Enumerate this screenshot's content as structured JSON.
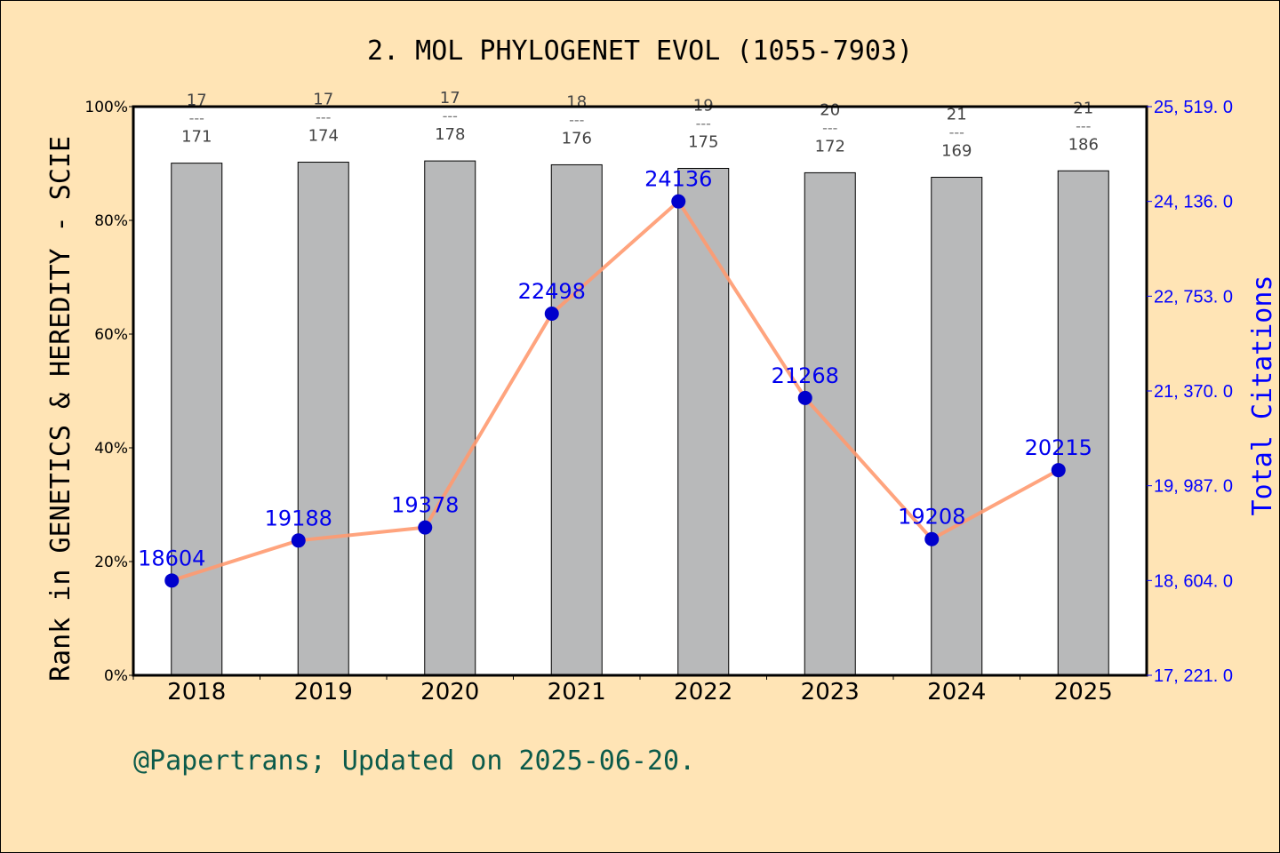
{
  "chart_data": {
    "type": "bar+line",
    "title": "2. MOL PHYLOGENET EVOL (1055-7903)",
    "ylabel": "Rank in GENETICS & HEREDITY - SCIE",
    "y2label": "Total Citations",
    "categories": [
      "2018",
      "2019",
      "2020",
      "2021",
      "2022",
      "2023",
      "2024",
      "2025"
    ],
    "ranks": [
      17,
      17,
      17,
      18,
      19,
      20,
      21,
      21
    ],
    "totals": [
      171,
      174,
      178,
      176,
      175,
      172,
      169,
      186
    ],
    "citations": [
      18604,
      19188,
      19378,
      22498,
      24136,
      21268,
      19208,
      20215
    ],
    "ylim": [
      0,
      100
    ],
    "yticks": [
      "0%",
      "20%",
      "40%",
      "60%",
      "80%",
      "100%"
    ],
    "y2lim": [
      17221,
      25519
    ],
    "y2ticks": [
      "17, 221. 0",
      "18, 604. 0",
      "19, 987. 0",
      "21, 370. 0",
      "22, 753. 0",
      "24, 136. 0",
      "25, 519. 0"
    ],
    "fraction_separator": "---",
    "colors": {
      "bar": "#b8b9ba",
      "line": "#ff9a70",
      "point": "#0000cc",
      "citation_text": "#0000ee",
      "axis2": "#0000ff",
      "footer": "#0b5a4a"
    },
    "grid": false
  },
  "footer": "@Papertrans; Updated on 2025-06-20."
}
